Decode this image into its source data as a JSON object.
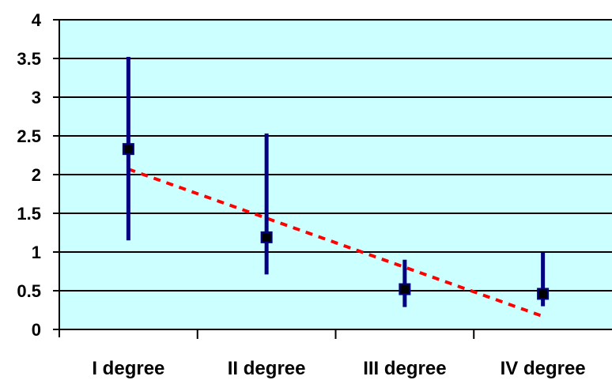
{
  "chart_data": {
    "type": "scatter",
    "categories": [
      "I degree",
      "II degree",
      "III degree",
      "IV degree"
    ],
    "series": [
      {
        "values": [
          2.33,
          1.19,
          0.52,
          0.46
        ],
        "error_low": [
          1.15,
          0.71,
          0.29,
          0.3
        ],
        "error_high": [
          3.52,
          2.53,
          0.9,
          0.99
        ]
      }
    ],
    "trendline": {
      "start": 2.07,
      "end": 0.17,
      "style": "dashed"
    },
    "ylim": [
      0,
      4
    ],
    "yticks": [
      "0",
      "0.5",
      "1",
      "1.5",
      "2",
      "2.5",
      "3",
      "3.5",
      "4"
    ],
    "xlabel": "",
    "ylabel": "",
    "grid": true,
    "legend": "none",
    "colors": {
      "plot_background": "#ccffff",
      "marker_fill": "#000000",
      "marker_border": "#000080",
      "error_bar": "#000080",
      "trendline": "#ff0000",
      "grid": "#000000"
    }
  }
}
